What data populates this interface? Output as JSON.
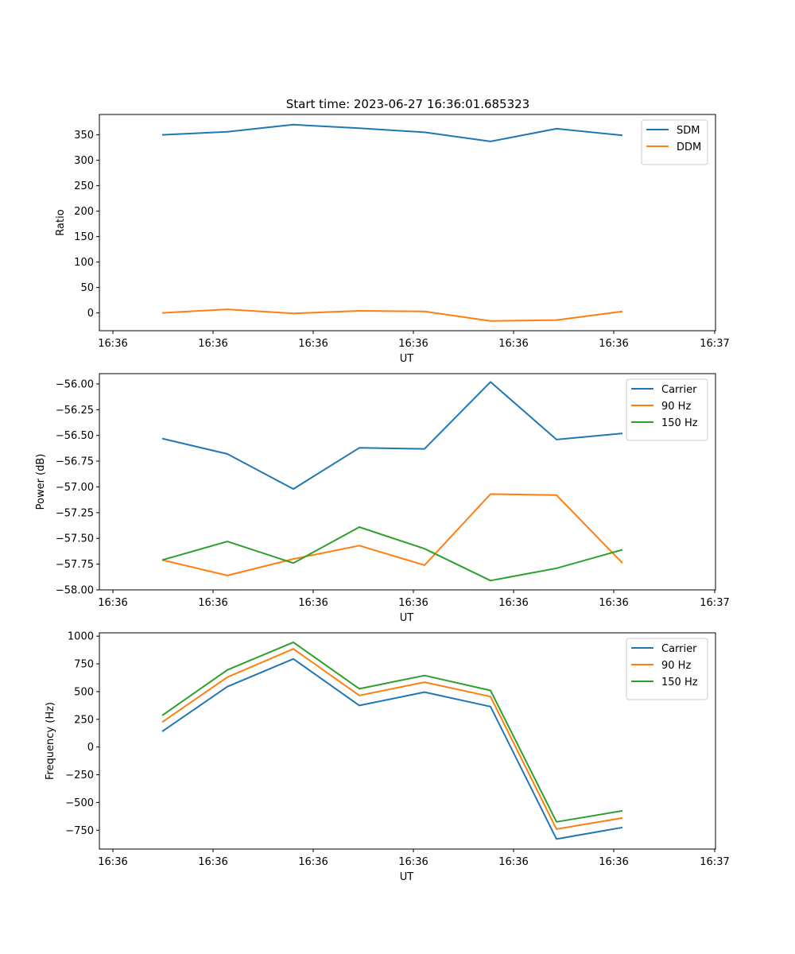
{
  "figure_title": "Start time: 2023-06-27 16:36:01.685323",
  "chart_data": [
    {
      "type": "line",
      "xlabel": "UT",
      "ylabel": "Ratio",
      "x_ticks": [
        "16:36",
        "16:36",
        "16:36",
        "16:36",
        "16:36",
        "16:36",
        "16:36"
      ],
      "x_ticks_last": "16:37",
      "y_ticks": [
        "0",
        "50",
        "100",
        "150",
        "200",
        "250",
        "300",
        "350"
      ],
      "ylim": [
        -35,
        390
      ],
      "legend": "top-right",
      "series": [
        {
          "name": "SDM",
          "color": "#1f77b4",
          "values": [
            350,
            356,
            370,
            363,
            355,
            337,
            362,
            349
          ]
        },
        {
          "name": "DDM",
          "color": "#ff7f0e",
          "values": [
            0,
            7,
            -1,
            4,
            3,
            -16,
            -14,
            3
          ]
        }
      ]
    },
    {
      "type": "line",
      "xlabel": "UT",
      "ylabel": "Power (dB)",
      "x_ticks": [
        "16:36",
        "16:36",
        "16:36",
        "16:36",
        "16:36",
        "16:36",
        "16:36"
      ],
      "x_ticks_last": "16:37",
      "y_ticks": [
        "−58.00",
        "−57.75",
        "−57.50",
        "−57.25",
        "−57.00",
        "−56.75",
        "−56.50",
        "−56.25",
        "−56.00"
      ],
      "ylim": [
        -58.0,
        -55.9
      ],
      "legend": "top-right",
      "series": [
        {
          "name": "Carrier",
          "color": "#1f77b4",
          "values": [
            -56.53,
            -56.68,
            -57.02,
            -56.62,
            -56.63,
            -55.98,
            -56.54,
            -56.48
          ]
        },
        {
          "name": "90 Hz",
          "color": "#ff7f0e",
          "values": [
            -57.71,
            -57.86,
            -57.7,
            -57.57,
            -57.76,
            -57.07,
            -57.08,
            -57.74
          ]
        },
        {
          "name": "150 Hz",
          "color": "#2ca02c",
          "values": [
            -57.71,
            -57.53,
            -57.74,
            -57.39,
            -57.6,
            -57.91,
            -57.79,
            -57.61
          ]
        }
      ]
    },
    {
      "type": "line",
      "xlabel": "UT",
      "ylabel": "Frequency (Hz)",
      "x_ticks": [
        "16:36",
        "16:36",
        "16:36",
        "16:36",
        "16:36",
        "16:36",
        "16:36"
      ],
      "x_ticks_last": "16:37",
      "y_ticks": [
        "−750",
        "−500",
        "−250",
        "0",
        "250",
        "500",
        "750",
        "1000"
      ],
      "ylim": [
        -920,
        1030
      ],
      "legend": "top-right",
      "series": [
        {
          "name": "Carrier",
          "color": "#1f77b4",
          "values": [
            140,
            545,
            795,
            375,
            495,
            365,
            -830,
            -725
          ]
        },
        {
          "name": "90 Hz",
          "color": "#ff7f0e",
          "values": [
            225,
            630,
            885,
            465,
            585,
            455,
            -740,
            -640
          ]
        },
        {
          "name": "150 Hz",
          "color": "#2ca02c",
          "values": [
            285,
            695,
            945,
            525,
            645,
            510,
            -675,
            -575
          ]
        }
      ]
    }
  ]
}
